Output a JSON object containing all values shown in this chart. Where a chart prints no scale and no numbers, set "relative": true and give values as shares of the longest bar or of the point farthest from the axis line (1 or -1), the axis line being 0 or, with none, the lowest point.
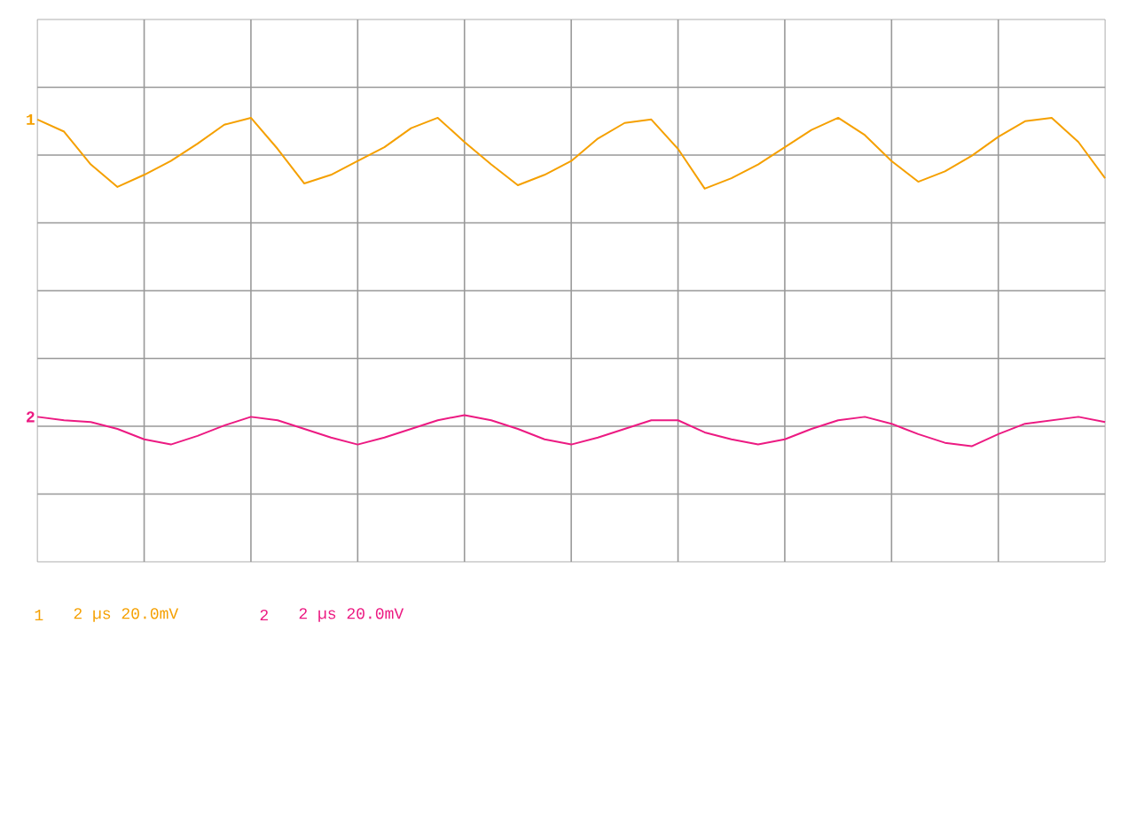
{
  "chart_data": {
    "type": "line",
    "relative": true,
    "grid": true,
    "categories": [
      null,
      null,
      null,
      null,
      null,
      null,
      null,
      null,
      null,
      null,
      null,
      null,
      null,
      null,
      null,
      null,
      null,
      null,
      null,
      null,
      null,
      null,
      null,
      null,
      null,
      null,
      null,
      null,
      null,
      null,
      null,
      null,
      null,
      null,
      null,
      null,
      null,
      null,
      null,
      null,
      null
    ],
    "series": [
      {
        "name": "1",
        "color": "#f5a000",
        "values": [
          0.99,
          0.92,
          0.73,
          0.6,
          0.67,
          0.75,
          0.85,
          0.96,
          1.0,
          0.82,
          0.62,
          0.67,
          0.75,
          0.83,
          0.94,
          1.0,
          0.86,
          0.73,
          0.61,
          0.67,
          0.75,
          0.88,
          0.97,
          0.99,
          0.82,
          0.59,
          0.65,
          0.73,
          0.83,
          0.93,
          1.0,
          0.9,
          0.75,
          0.63,
          0.69,
          0.78,
          0.89,
          0.98,
          1.0,
          0.86,
          0.65
        ]
      },
      {
        "name": "2",
        "color": "#ec1a82",
        "values": [
          -0.73,
          -0.75,
          -0.76,
          -0.8,
          -0.86,
          -0.89,
          -0.84,
          -0.78,
          -0.73,
          -0.75,
          -0.8,
          -0.85,
          -0.89,
          -0.85,
          -0.8,
          -0.75,
          -0.72,
          -0.75,
          -0.8,
          -0.86,
          -0.89,
          -0.85,
          -0.8,
          -0.75,
          -0.75,
          -0.82,
          -0.86,
          -0.89,
          -0.86,
          -0.8,
          -0.75,
          -0.73,
          -0.77,
          -0.83,
          -0.88,
          -0.9,
          -0.83,
          -0.77,
          -0.75,
          -0.73,
          -0.76
        ]
      }
    ],
    "annotations": [
      "2 µs 20.0mV",
      "2 µs 20.0mV"
    ]
  }
}
